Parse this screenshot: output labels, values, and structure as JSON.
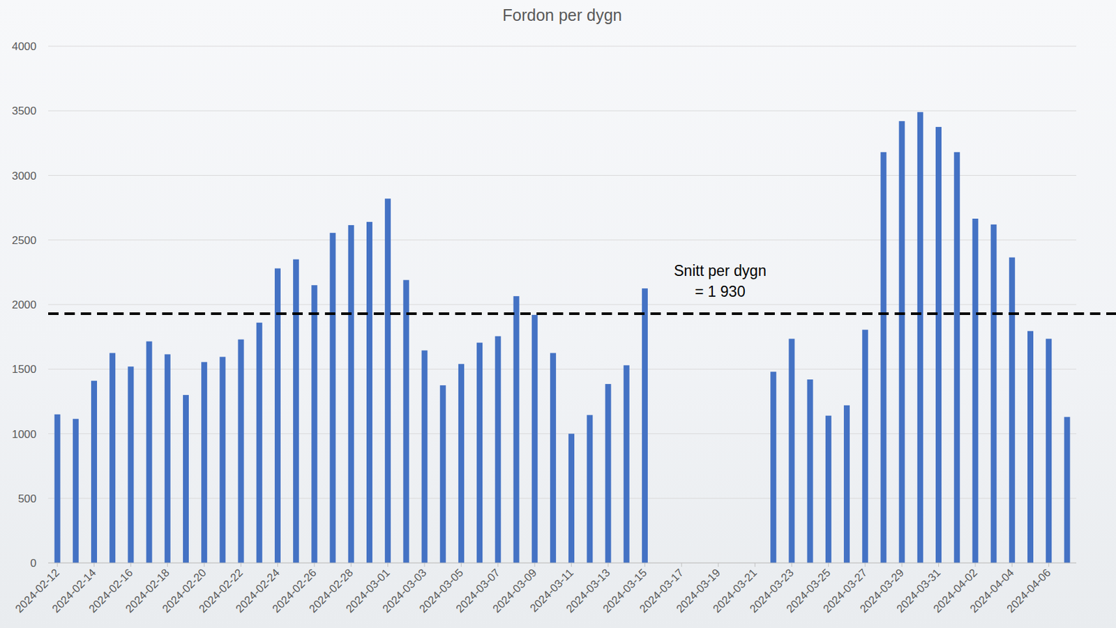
{
  "chart_data": {
    "type": "bar",
    "title": "Fordon per dygn",
    "categories": [
      "2024-02-12",
      null,
      "2024-02-14",
      null,
      "2024-02-16",
      null,
      "2024-02-18",
      null,
      "2024-02-20",
      null,
      "2024-02-22",
      null,
      "2024-02-24",
      null,
      "2024-02-26",
      null,
      "2024-02-28",
      null,
      "2024-03-01",
      null,
      "2024-03-03",
      null,
      "2024-03-05",
      null,
      "2024-03-07",
      null,
      "2024-03-09",
      null,
      "2024-03-11",
      null,
      "2024-03-13",
      null,
      "2024-03-15",
      null,
      "2024-03-17",
      null,
      "2024-03-19",
      null,
      "2024-03-21",
      null,
      "2024-03-23",
      null,
      "2024-03-25",
      null,
      "2024-03-27",
      null,
      "2024-03-29",
      null,
      "2024-03-31",
      null,
      "2024-04-02",
      null,
      "2024-04-04",
      null,
      "2024-04-06",
      null
    ],
    "values": [
      1150,
      1115,
      1410,
      1625,
      1520,
      1715,
      1615,
      1300,
      1555,
      1595,
      1730,
      1860,
      2280,
      2350,
      2150,
      2555,
      2615,
      2640,
      2820,
      2190,
      1645,
      1375,
      1540,
      1705,
      1755,
      2065,
      1920,
      1625,
      1000,
      1145,
      1385,
      1530,
      2125,
      null,
      null,
      null,
      null,
      null,
      null,
      1480,
      1735,
      1420,
      1140,
      1220,
      1805,
      3180,
      3420,
      3490,
      3375,
      3180,
      2665,
      2620,
      2365,
      1795,
      1735,
      1130
    ],
    "color": "#4472c4",
    "ylim": [
      0,
      4000
    ],
    "yticks": [
      0,
      500,
      1000,
      1500,
      2000,
      2500,
      3000,
      3500,
      4000
    ],
    "grid": true,
    "annotation": {
      "text": [
        "Snitt per dygn",
        "= 1 930"
      ],
      "value": 1930
    }
  }
}
